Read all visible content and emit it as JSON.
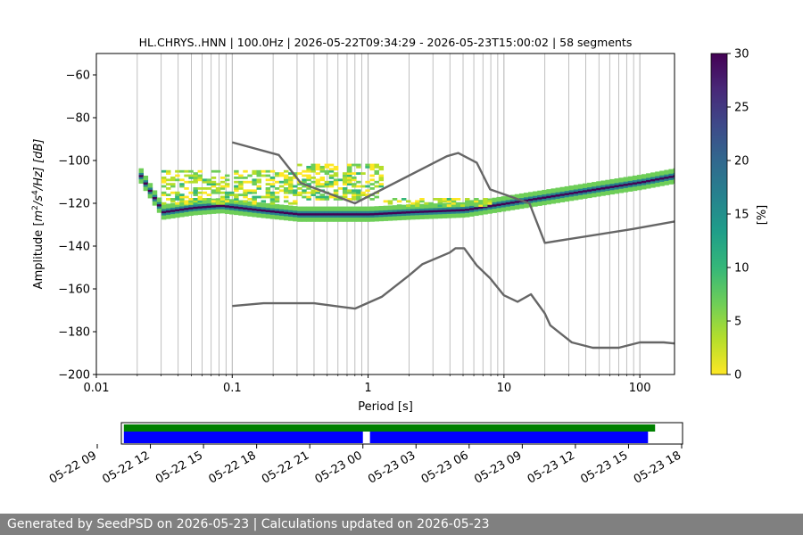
{
  "chart_data": [
    {
      "type": "heatmap",
      "title": "HL.CHRYS..HNN | 100.0Hz | 2026-05-22T09:34:29 - 2026-05-23T15:00:02 | 58 segments",
      "xlabel": "Period [s]",
      "ylabel_parts": {
        "pre": "Amplitude [",
        "m": "m",
        "exp1": "2",
        "mid": "/s",
        "exp2": "4",
        "post": "/Hz] [dB]"
      },
      "xscale": "log",
      "xlim": [
        0.01,
        180
      ],
      "ylim": [
        -200,
        -50
      ],
      "grid": "x-major-and-minor",
      "x_ticks": [
        {
          "v": 0.01,
          "label": "0.01"
        },
        {
          "v": 0.1,
          "label": "0.1"
        },
        {
          "v": 1,
          "label": "1"
        },
        {
          "v": 10,
          "label": "10"
        },
        {
          "v": 100,
          "label": "100"
        }
      ],
      "y_ticks": [
        {
          "v": -60,
          "label": "−60"
        },
        {
          "v": -80,
          "label": "−80"
        },
        {
          "v": -100,
          "label": "−100"
        },
        {
          "v": -120,
          "label": "−120"
        },
        {
          "v": -140,
          "label": "−140"
        },
        {
          "v": -160,
          "label": "−160"
        },
        {
          "v": -180,
          "label": "−180"
        },
        {
          "v": -200,
          "label": "−200"
        }
      ],
      "colorbar": {
        "label": "[%]",
        "range": [
          0,
          30
        ],
        "ticks": [
          {
            "v": 0,
            "label": "0"
          },
          {
            "v": 5,
            "label": "5"
          },
          {
            "v": 10,
            "label": "10"
          },
          {
            "v": 15,
            "label": "15"
          },
          {
            "v": 20,
            "label": "20"
          },
          {
            "v": 25,
            "label": "25"
          },
          {
            "v": 30,
            "label": "30"
          }
        ],
        "colors": [
          "#fde725",
          "#b5de2b",
          "#6ece58",
          "#35b779",
          "#1f9e89",
          "#26828e",
          "#31688e",
          "#3e4989",
          "#482878",
          "#440154"
        ]
      },
      "psd_mode_curve": [
        {
          "period": 0.02,
          "db": -106
        },
        {
          "period": 0.025,
          "db": -116
        },
        {
          "period": 0.03,
          "db": -124
        },
        {
          "period": 0.05,
          "db": -122
        },
        {
          "period": 0.08,
          "db": -121
        },
        {
          "period": 0.15,
          "db": -123
        },
        {
          "period": 0.3,
          "db": -125
        },
        {
          "period": 0.6,
          "db": -125
        },
        {
          "period": 1,
          "db": -125
        },
        {
          "period": 2,
          "db": -124
        },
        {
          "period": 5,
          "db": -123
        },
        {
          "period": 10,
          "db": -120
        },
        {
          "period": 20,
          "db": -117
        },
        {
          "period": 50,
          "db": -113
        },
        {
          "period": 100,
          "db": -110
        },
        {
          "period": 180,
          "db": -107
        }
      ],
      "psd_secondary_bands": [
        {
          "from": 0.03,
          "to": 0.3,
          "db_low": -120,
          "db_high": -105
        },
        {
          "from": 0.3,
          "to": 1.2,
          "db_low": -118,
          "db_high": -102
        },
        {
          "from": 1.2,
          "to": 8,
          "db_low": -121,
          "db_high": -118
        }
      ],
      "series": [
        {
          "points": [
            [
              0.1,
              -91.5
            ],
            [
              0.22,
              -97.4
            ],
            [
              0.32,
              -110.5
            ],
            [
              0.8,
              -120.0
            ],
            [
              3.8,
              -98.0
            ],
            [
              4.6,
              -96.5
            ],
            [
              6.3,
              -101.0
            ],
            [
              7.9,
              -113.5
            ],
            [
              15.4,
              -120.0
            ],
            [
              20,
              -138.5
            ],
            [
              89,
              -132.0
            ],
            [
              180,
              -128.5
            ]
          ]
        },
        {
          "points": [
            [
              0.1,
              -168.0
            ],
            [
              0.17,
              -166.7
            ],
            [
              0.4,
              -166.7
            ],
            [
              0.8,
              -169.2
            ],
            [
              1.26,
              -163.7
            ],
            [
              2,
              -153.7
            ],
            [
              2.5,
              -148.5
            ],
            [
              4,
              -143.0
            ],
            [
              4.4,
              -141.0
            ],
            [
              5.1,
              -141.0
            ],
            [
              6.3,
              -149.0
            ],
            [
              7.9,
              -155.0
            ],
            [
              10,
              -163.0
            ],
            [
              12.6,
              -166.0
            ],
            [
              15.8,
              -162.5
            ],
            [
              20,
              -171.5
            ],
            [
              21.9,
              -177.0
            ],
            [
              31.6,
              -185.0
            ],
            [
              45,
              -187.5
            ],
            [
              70,
              -187.5
            ],
            [
              100,
              -185.0
            ],
            [
              150,
              -185.0
            ],
            [
              180,
              -185.5
            ]
          ]
        }
      ]
    },
    {
      "type": "timeline",
      "x_ticks": [
        "05-22 09",
        "05-22 12",
        "05-22 15",
        "05-22 18",
        "05-22 21",
        "05-23 00",
        "05-23 03",
        "05-23 06",
        "05-23 09",
        "05-23 12",
        "05-23 15",
        "05-23 18"
      ],
      "green_span": {
        "start_hours": 1.5,
        "end_hours": 31.5
      },
      "blue_spans": [
        {
          "start_hours": 1.5,
          "end_hours": 15.0
        },
        {
          "start_hours": 15.4,
          "end_hours": 31.1
        }
      ],
      "colors": {
        "green": "#008000",
        "blue": "#0000ff"
      }
    }
  ],
  "footer": "Generated by SeedPSD on 2026-05-23 | Calculations updated on 2026-05-23"
}
